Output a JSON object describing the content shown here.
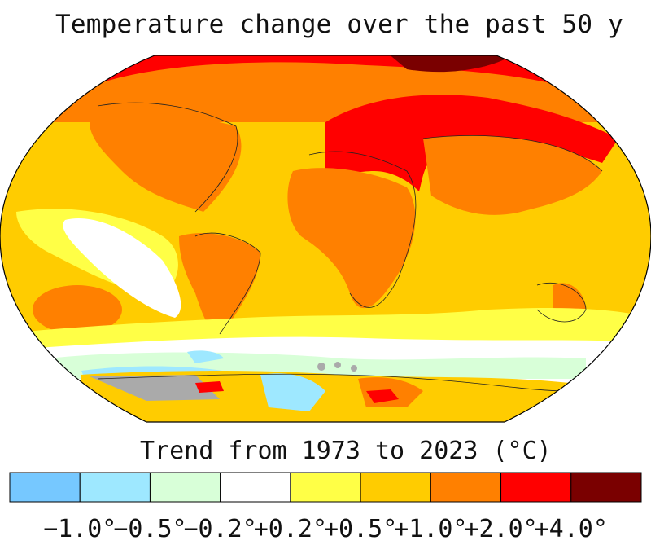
{
  "title": "Temperature change over the past 50 y",
  "legend": {
    "title": "Trend from 1973 to 2023 (°C)",
    "bins": [
      {
        "color": "#76c8ff"
      },
      {
        "color": "#9ee8ff"
      },
      {
        "color": "#d8ffd8"
      },
      {
        "color": "#ffffff"
      },
      {
        "color": "#ffff46"
      },
      {
        "color": "#ffcc00"
      },
      {
        "color": "#ff8000"
      },
      {
        "color": "#ff0000"
      },
      {
        "color": "#7a0000"
      }
    ],
    "tick_labels": [
      "−1.0°",
      "−0.5°",
      "−0.2°",
      "+0.2°",
      "+0.5°",
      "+1.0°",
      "+2.0°",
      "+4.0°"
    ]
  },
  "no_data_color": "#aaaaaa"
}
